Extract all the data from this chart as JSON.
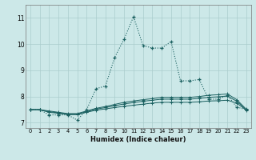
{
  "title": "",
  "xlabel": "Humidex (Indice chaleur)",
  "bg_color": "#cce8e8",
  "grid_color": "#aacccc",
  "line_color": "#1a6060",
  "xlim": [
    -0.5,
    23.5
  ],
  "ylim": [
    6.8,
    11.5
  ],
  "yticks": [
    7,
    8,
    9,
    10,
    11
  ],
  "xticks": [
    0,
    1,
    2,
    3,
    4,
    5,
    6,
    7,
    8,
    9,
    10,
    11,
    12,
    13,
    14,
    15,
    16,
    17,
    18,
    19,
    20,
    21,
    22,
    23
  ],
  "s1_x": [
    0,
    1,
    2,
    3,
    4,
    5,
    6,
    7,
    8,
    9,
    10,
    11,
    12,
    13,
    14,
    15,
    16,
    17,
    18,
    19,
    20,
    21,
    22,
    23
  ],
  "s1_y": [
    7.5,
    7.5,
    7.3,
    7.3,
    7.3,
    7.1,
    7.5,
    8.3,
    8.4,
    9.5,
    10.2,
    11.05,
    9.95,
    9.85,
    9.85,
    10.1,
    8.6,
    8.6,
    8.65,
    7.9,
    7.9,
    8.05,
    7.6,
    7.5
  ],
  "s2_x": [
    0,
    1,
    2,
    3,
    4,
    5,
    6,
    7,
    8,
    9,
    10,
    11,
    12,
    13,
    14,
    15,
    16,
    17,
    18,
    19,
    20,
    21,
    22,
    23
  ],
  "s2_y": [
    7.5,
    7.5,
    7.45,
    7.4,
    7.35,
    7.35,
    7.45,
    7.55,
    7.62,
    7.7,
    7.78,
    7.83,
    7.88,
    7.92,
    7.97,
    7.97,
    7.97,
    7.97,
    8.0,
    8.05,
    8.07,
    8.1,
    7.88,
    7.52
  ],
  "s3_x": [
    0,
    1,
    2,
    3,
    4,
    5,
    6,
    7,
    8,
    9,
    10,
    11,
    12,
    13,
    14,
    15,
    16,
    17,
    18,
    19,
    20,
    21,
    22,
    23
  ],
  "s3_y": [
    7.5,
    7.5,
    7.42,
    7.38,
    7.33,
    7.33,
    7.42,
    7.52,
    7.58,
    7.65,
    7.72,
    7.77,
    7.82,
    7.86,
    7.9,
    7.9,
    7.9,
    7.9,
    7.93,
    7.97,
    7.99,
    8.02,
    7.82,
    7.5
  ],
  "s4_x": [
    0,
    1,
    2,
    3,
    4,
    5,
    6,
    7,
    8,
    9,
    10,
    11,
    12,
    13,
    14,
    15,
    16,
    17,
    18,
    19,
    20,
    21,
    22,
    23
  ],
  "s4_y": [
    7.5,
    7.5,
    7.4,
    7.36,
    7.31,
    7.31,
    7.4,
    7.48,
    7.53,
    7.58,
    7.63,
    7.67,
    7.71,
    7.75,
    7.78,
    7.78,
    7.78,
    7.78,
    7.8,
    7.83,
    7.84,
    7.86,
    7.75,
    7.48
  ]
}
